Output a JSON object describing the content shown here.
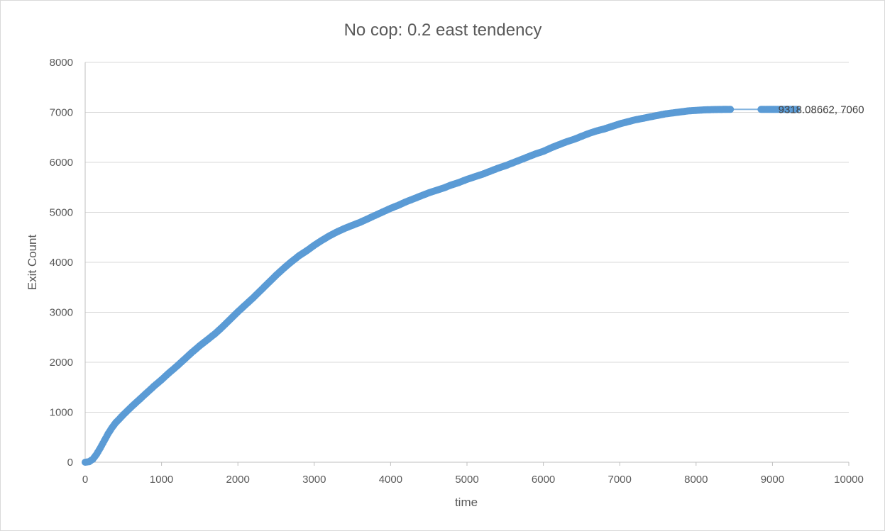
{
  "chart_data": {
    "type": "scatter",
    "title": "No cop: 0.2 east tendency",
    "xlabel": "time",
    "ylabel": "Exit Count",
    "xlim": [
      0,
      10000
    ],
    "ylim": [
      0,
      8000
    ],
    "x_ticks": [
      "0",
      "1000",
      "2000",
      "3000",
      "4000",
      "5000",
      "6000",
      "7000",
      "8000",
      "9000",
      "10000"
    ],
    "y_ticks": [
      "0",
      "1000",
      "2000",
      "3000",
      "4000",
      "5000",
      "6000",
      "7000",
      "8000"
    ],
    "grid": "horizontal",
    "legend": "none",
    "series": [
      {
        "color": "#5b9bd5",
        "x": [
          0,
          50,
          100,
          150,
          200,
          250,
          300,
          350,
          400,
          500,
          600,
          700,
          800,
          900,
          1000,
          1100,
          1200,
          1300,
          1400,
          1500,
          1600,
          1700,
          1800,
          1900,
          2000,
          2100,
          2200,
          2300,
          2400,
          2500,
          2600,
          2700,
          2800,
          2900,
          3000,
          3100,
          3200,
          3300,
          3400,
          3500,
          3600,
          3700,
          3800,
          3900,
          4000,
          4100,
          4200,
          4300,
          4400,
          4500,
          4600,
          4700,
          4800,
          4900,
          5000,
          5100,
          5200,
          5300,
          5400,
          5500,
          5600,
          5700,
          5800,
          5900,
          6000,
          6100,
          6200,
          6300,
          6400,
          6500,
          6600,
          6700,
          6800,
          6900,
          7000,
          7100,
          7200,
          7300,
          7400,
          7500,
          7600,
          7700,
          7800,
          7900,
          8000,
          8100,
          8200,
          8300,
          8400,
          8450,
          8850,
          8900,
          8950,
          9050,
          9100,
          9200,
          9318.08662
        ],
        "y": [
          0,
          10,
          60,
          160,
          290,
          430,
          570,
          690,
          790,
          950,
          1100,
          1240,
          1380,
          1520,
          1650,
          1790,
          1920,
          2060,
          2200,
          2330,
          2450,
          2570,
          2710,
          2860,
          3010,
          3150,
          3290,
          3440,
          3590,
          3740,
          3880,
          4010,
          4130,
          4230,
          4340,
          4440,
          4530,
          4610,
          4680,
          4740,
          4800,
          4870,
          4940,
          5010,
          5080,
          5140,
          5210,
          5270,
          5330,
          5390,
          5440,
          5490,
          5550,
          5600,
          5660,
          5710,
          5760,
          5820,
          5880,
          5930,
          5990,
          6050,
          6110,
          6170,
          6220,
          6290,
          6350,
          6410,
          6460,
          6520,
          6580,
          6630,
          6670,
          6720,
          6770,
          6810,
          6850,
          6880,
          6910,
          6940,
          6970,
          6990,
          7010,
          7030,
          7040,
          7050,
          7055,
          7058,
          7060,
          7060,
          7060,
          7060,
          7060,
          7060,
          7060,
          7060,
          7060
        ]
      }
    ],
    "annotations": [
      {
        "text": "9318.08662, 7060",
        "x": 9318.08662,
        "y": 7060
      }
    ]
  }
}
